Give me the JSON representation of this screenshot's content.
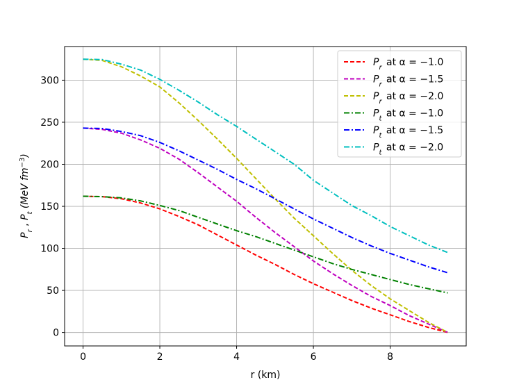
{
  "chart_data": {
    "type": "line",
    "xlabel": "r (km)",
    "ylabel": "P_r , P_t (MeV fm^-3)",
    "xlim": [
      -0.48,
      9.98
    ],
    "ylim": [
      -16,
      340
    ],
    "xticks": [
      0,
      2,
      4,
      6,
      8
    ],
    "yticks": [
      0,
      50,
      100,
      150,
      200,
      250,
      300
    ],
    "grid": true,
    "legend_position": "top-right",
    "x": [
      0,
      0.5,
      1,
      1.5,
      2,
      2.5,
      3,
      3.5,
      4,
      4.5,
      5,
      5.5,
      6,
      6.5,
      7,
      7.5,
      8,
      8.5,
      9,
      9.5
    ],
    "series": [
      {
        "name": "P_r at α = −1.0",
        "color": "#ff0000",
        "style": "dashed",
        "values": [
          162,
          161.5,
          159,
          154,
          147,
          138,
          128,
          116,
          104,
          92,
          81,
          69,
          58,
          48,
          38,
          29,
          21,
          13,
          6,
          0
        ]
      },
      {
        "name": "P_r at α = −1.5",
        "color": "#bf00bf",
        "style": "dashed",
        "values": [
          243,
          241.5,
          237,
          229,
          219,
          206,
          190,
          173,
          156,
          137,
          119,
          102,
          85,
          70,
          56,
          43,
          32,
          20,
          10,
          0
        ]
      },
      {
        "name": "P_r at α = −2.0",
        "color": "#bfbf00",
        "style": "dashed",
        "values": [
          325,
          323.5,
          316,
          305,
          292,
          273,
          252,
          230,
          207,
          183,
          159,
          136,
          115,
          94,
          74,
          56,
          40,
          26,
          12,
          0
        ]
      },
      {
        "name": "P_t at α = −1.0",
        "color": "#008000",
        "style": "dashdot",
        "values": [
          162,
          161.5,
          160,
          156.5,
          151,
          145,
          137,
          129,
          121,
          114,
          106,
          98,
          90,
          82,
          75,
          69,
          63,
          57,
          52,
          47
        ]
      },
      {
        "name": "P_t at α = −1.5",
        "color": "#0000ff",
        "style": "dashdot",
        "values": [
          243,
          242.5,
          239,
          234,
          226,
          216,
          205,
          194,
          182,
          171,
          159,
          147,
          135,
          124,
          113,
          103,
          94,
          86,
          78,
          71
        ]
      },
      {
        "name": "P_t at α = −2.0",
        "color": "#00bfbf",
        "style": "dashdot",
        "values": [
          325,
          324.5,
          319,
          312,
          301,
          288,
          274,
          259,
          245,
          230,
          215,
          200,
          181,
          166,
          151,
          139,
          126,
          115,
          104,
          95
        ]
      }
    ]
  }
}
